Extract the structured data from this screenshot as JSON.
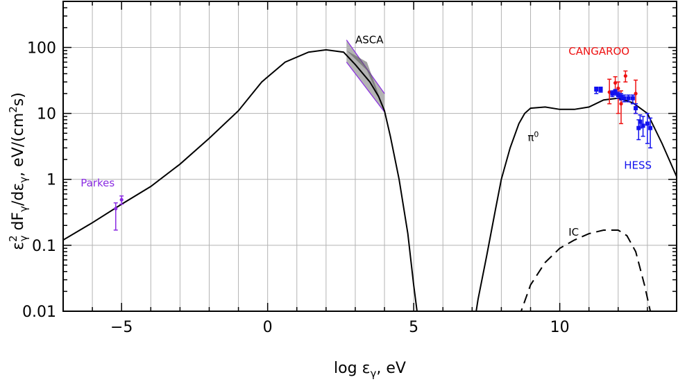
{
  "chart_data": {
    "type": "line",
    "title": "",
    "xlabel_parts": {
      "pre": "log ",
      "sym": "ε",
      "sub": "γ",
      "post": ", eV"
    },
    "ylabel_parts": {
      "a": "ε",
      "a_sup": "2",
      "a_sub": "γ",
      "b": " dF",
      "b_sub": "γ",
      "c": "/dε",
      "c_sub": "γ",
      "d": ",   eV/(cm",
      "d_sup": "2",
      "e": "s)"
    },
    "x_scale": "linear",
    "y_scale": "log",
    "xlim": [
      -7,
      14
    ],
    "ylim": [
      0.01,
      500
    ],
    "grid": true,
    "x_major_ticks": [
      -5,
      0,
      5,
      10
    ],
    "x_tick_labels": [
      "−5",
      "0",
      "5",
      "10"
    ],
    "y_major_ticks": [
      0.01,
      0.1,
      1,
      10,
      100
    ],
    "y_tick_labels": [
      "0.01",
      "0.1",
      "1",
      "10",
      "100"
    ],
    "series": [
      {
        "name": "",
        "style": "solid",
        "color": "#000000",
        "x": [
          -7.0,
          -6.0,
          -5.0,
          -4.0,
          -3.0,
          -2.0,
          -1.0,
          -0.2,
          0.6,
          1.4,
          2.0,
          2.6,
          3.0,
          3.5,
          3.8,
          4.0,
          4.2,
          4.5,
          4.8,
          5.0,
          5.2
        ],
        "y": [
          0.12,
          0.22,
          0.42,
          0.78,
          1.7,
          4.2,
          11,
          30,
          60,
          85,
          92,
          85,
          55,
          30,
          18,
          11,
          4.5,
          1.0,
          0.15,
          0.025,
          0.005
        ]
      },
      {
        "name": "π⁰",
        "style": "solid",
        "color": "#000000",
        "x": [
          7.0,
          7.2,
          7.5,
          7.8,
          8.0,
          8.3,
          8.6,
          8.8,
          9.0,
          9.5,
          10.0,
          10.5,
          11.0,
          11.5,
          12.0,
          12.5,
          13.0,
          13.5,
          14.0
        ],
        "y": [
          0.004,
          0.015,
          0.07,
          0.35,
          1.0,
          3.0,
          7.0,
          10.0,
          12.0,
          12.5,
          11.5,
          11.5,
          12.5,
          16.0,
          17.0,
          14.5,
          10.0,
          3.5,
          1.1
        ]
      },
      {
        "name": "IC",
        "style": "dashed",
        "color": "#000000",
        "x": [
          8.6,
          9.0,
          9.5,
          10.0,
          10.5,
          11.0,
          11.5,
          12.0,
          12.3,
          12.6,
          12.9,
          13.1
        ],
        "y": [
          0.008,
          0.025,
          0.055,
          0.09,
          0.12,
          0.15,
          0.17,
          0.17,
          0.14,
          0.08,
          0.025,
          0.01
        ]
      }
    ],
    "bowtie": {
      "name": "ASCA",
      "x_range": [
        2.7,
        4.0
      ],
      "upper": [
        130,
        20
      ],
      "lower": [
        60,
        10.5
      ],
      "fill": "#b3b3b3",
      "edge_color": "#8a2be2",
      "inner_edge_color": "#000000"
    },
    "points": [
      {
        "group": "Parkes",
        "color": "#8a2be2",
        "data": [
          {
            "x": -5.2,
            "y": 0.36,
            "ylo": 0.17,
            "yhi": 0.44
          },
          {
            "x": -5.0,
            "y": 0.49,
            "ylo": 0.42,
            "yhi": 0.56
          }
        ]
      },
      {
        "group": "CANGAROO",
        "color": "#ee1111",
        "data": [
          {
            "x": 11.7,
            "y": 21,
            "ylo": 14,
            "yhi": 33
          },
          {
            "x": 11.9,
            "y": 29,
            "ylo": 20,
            "yhi": 36
          },
          {
            "x": 12.0,
            "y": 24,
            "ylo": 10,
            "yhi": 30
          },
          {
            "x": 12.1,
            "y": 14,
            "ylo": 7,
            "yhi": 22
          },
          {
            "x": 12.25,
            "y": 37,
            "ylo": 30,
            "yhi": 44
          },
          {
            "x": 12.6,
            "y": 20,
            "ylo": 10,
            "yhi": 32
          }
        ]
      },
      {
        "group": "HESS",
        "color": "#1111ee",
        "data": [
          {
            "x": 11.25,
            "y": 23,
            "ylo": 20,
            "yhi": 25
          },
          {
            "x": 11.4,
            "y": 23,
            "ylo": 21,
            "yhi": 25
          },
          {
            "x": 11.8,
            "y": 20,
            "ylo": 18,
            "yhi": 22
          },
          {
            "x": 11.9,
            "y": 21,
            "ylo": 19,
            "yhi": 23
          },
          {
            "x": 12.0,
            "y": 19,
            "ylo": 17,
            "yhi": 21
          },
          {
            "x": 12.1,
            "y": 18,
            "ylo": 16,
            "yhi": 20
          },
          {
            "x": 12.2,
            "y": 17,
            "ylo": 15,
            "yhi": 19
          },
          {
            "x": 12.35,
            "y": 17,
            "ylo": 15,
            "yhi": 19
          },
          {
            "x": 12.5,
            "y": 17,
            "ylo": 14,
            "yhi": 19
          },
          {
            "x": 12.6,
            "y": 12,
            "ylo": 10,
            "yhi": 14
          },
          {
            "x": 12.75,
            "y": 7.5,
            "ylo": 6,
            "yhi": 9.5
          },
          {
            "x": 12.85,
            "y": 6.5,
            "ylo": 4.5,
            "yhi": 9
          },
          {
            "x": 13.0,
            "y": 7,
            "ylo": 3.5,
            "yhi": 10
          },
          {
            "x": 13.1,
            "y": 6,
            "ylo": 3,
            "yhi": 8.5
          },
          {
            "x": 12.7,
            "y": 6,
            "ylo": 4,
            "yhi": 8
          }
        ]
      }
    ],
    "annotations": [
      {
        "text": "Parkes",
        "x": -6.4,
        "y": 0.78,
        "color": "#8a2be2"
      },
      {
        "text": "ASCA",
        "x": 3.0,
        "y": 115,
        "color": "#000000"
      },
      {
        "text": "CANGAROO",
        "x": 10.3,
        "y": 78,
        "color": "#ee1111"
      },
      {
        "text": "HESS",
        "x": 12.2,
        "y": 1.45,
        "color": "#1111ee"
      },
      {
        "text": "π",
        "sup": "0",
        "x": 8.9,
        "y": 3.8,
        "color": "#000000"
      },
      {
        "text": "IC",
        "x": 10.3,
        "y": 0.14,
        "color": "#000000"
      }
    ]
  }
}
